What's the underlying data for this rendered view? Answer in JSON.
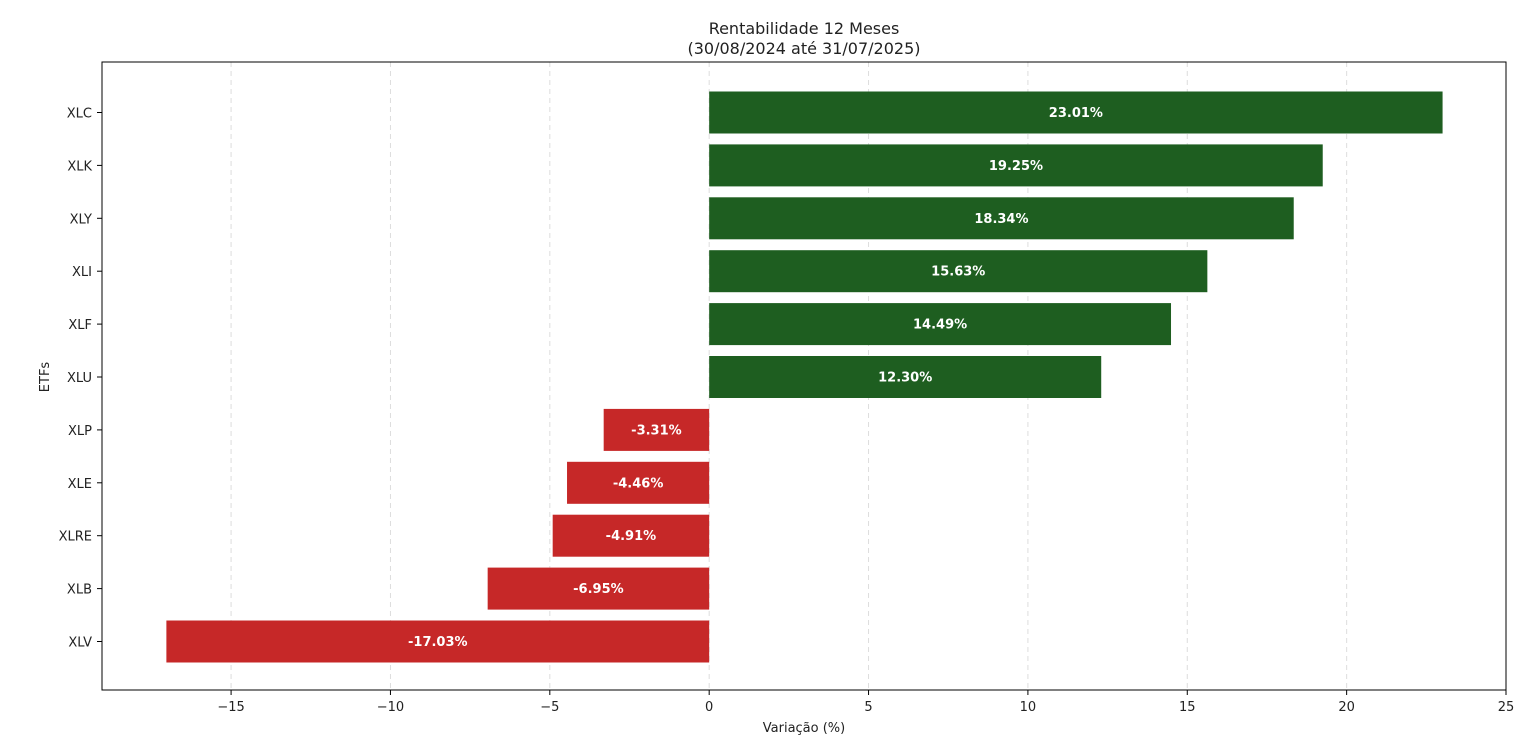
{
  "chart_data": {
    "type": "bar",
    "orientation": "horizontal",
    "title": "Rentabilidade 12 Meses",
    "subtitle": "(30/08/2024 até 31/07/2025)",
    "xlabel": "Variação (%)",
    "ylabel": "ETFs",
    "categories": [
      "XLC",
      "XLK",
      "XLY",
      "XLI",
      "XLF",
      "XLU",
      "XLP",
      "XLE",
      "XLRE",
      "XLB",
      "XLV"
    ],
    "values": [
      23.01,
      19.25,
      18.34,
      15.63,
      14.49,
      12.3,
      -3.31,
      -4.46,
      -4.91,
      -6.95,
      -17.03
    ],
    "data_labels": [
      "23.01%",
      "19.25%",
      "18.34%",
      "15.63%",
      "14.49%",
      "12.30%",
      "-3.31%",
      "-4.46%",
      "-4.91%",
      "-6.95%",
      "-17.03%"
    ],
    "xlim": [
      -19.05,
      25
    ],
    "x_ticks": [
      -15,
      -10,
      -5,
      0,
      5,
      10,
      15,
      20,
      25
    ],
    "x_tick_labels": [
      "−15",
      "−10",
      "−5",
      "0",
      "5",
      "10",
      "15",
      "20",
      "25"
    ],
    "grid": "vertical dashed",
    "legend": "none",
    "colors": {
      "positive": "#1e5e20",
      "negative": "#c62828",
      "grid": "#dddddd",
      "axis": "#000000"
    }
  }
}
